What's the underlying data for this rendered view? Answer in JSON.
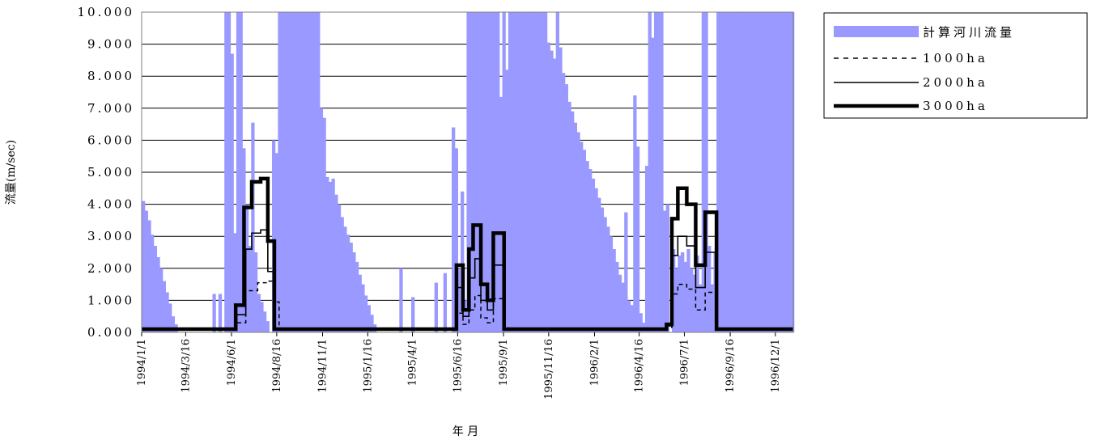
{
  "chart_data": {
    "type": "bar",
    "ylabel": "流量(m/sec)",
    "xlabel": "年 月",
    "ylim": [
      0,
      10
    ],
    "y_ticks": [
      "0.000",
      "1.000",
      "2.000",
      "3.000",
      "4.000",
      "5.000",
      "6.000",
      "7.000",
      "8.000",
      "9.000",
      "10.000"
    ],
    "x_ticks": [
      "1994/1/1",
      "1994/3/16",
      "1994/6/1",
      "1994/8/16",
      "1994/11/1",
      "1995/1/16",
      "1995/4/1",
      "1995/6/16",
      "1995/9/1",
      "1995/11/16",
      "1996/2/1",
      "1996/4/16",
      "1996/7/1",
      "1996/9/16",
      "1996/12/1"
    ],
    "x_range": [
      "1994/1/1",
      "1996/12/31"
    ],
    "grid": true,
    "legend_position": "top-right",
    "series": [
      {
        "name": "計算河川流量",
        "type": "bar",
        "color": "#9999ff",
        "points": [
          [
            "1994-01-01",
            4.1
          ],
          [
            "1994-01-06",
            3.8
          ],
          [
            "1994-01-11",
            3.5
          ],
          [
            "1994-01-16",
            3.05
          ],
          [
            "1994-01-21",
            2.7
          ],
          [
            "1994-01-26",
            2.35
          ],
          [
            "1994-01-31",
            2.0
          ],
          [
            "1994-02-05",
            1.6
          ],
          [
            "1994-02-10",
            1.25
          ],
          [
            "1994-02-15",
            0.9
          ],
          [
            "1994-02-20",
            0.5
          ],
          [
            "1994-02-25",
            0.25
          ],
          [
            "1994-04-30",
            1.2
          ],
          [
            "1994-05-10",
            1.2
          ],
          [
            "1994-05-20",
            10
          ],
          [
            "1994-05-25",
            10
          ],
          [
            "1994-05-30",
            8.7
          ],
          [
            "1994-06-04",
            3.1
          ],
          [
            "1994-06-09",
            10
          ],
          [
            "1994-06-14",
            10
          ],
          [
            "1994-06-19",
            5.75
          ],
          [
            "1994-06-24",
            4.0
          ],
          [
            "1994-06-29",
            2.7
          ],
          [
            "1994-07-04",
            6.55
          ],
          [
            "1994-07-09",
            2.5
          ],
          [
            "1994-07-14",
            1.2
          ],
          [
            "1994-07-19",
            0.95
          ],
          [
            "1994-07-24",
            0.65
          ],
          [
            "1994-07-29",
            0.35
          ],
          [
            "1994-08-08",
            6.0
          ],
          [
            "1994-08-13",
            5.6
          ],
          [
            "1994-08-18",
            10
          ],
          [
            "1994-08-23",
            10
          ],
          [
            "1994-08-28",
            10
          ],
          [
            "1994-09-02",
            10
          ],
          [
            "1994-09-07",
            10
          ],
          [
            "1994-09-12",
            10
          ],
          [
            "1994-09-17",
            10
          ],
          [
            "1994-09-22",
            10
          ],
          [
            "1994-09-27",
            10
          ],
          [
            "1994-10-02",
            10
          ],
          [
            "1994-10-07",
            10
          ],
          [
            "1994-10-12",
            10
          ],
          [
            "1994-10-17",
            10
          ],
          [
            "1994-10-22",
            10
          ],
          [
            "1994-10-27",
            7.0
          ],
          [
            "1994-11-01",
            6.7
          ],
          [
            "1994-11-06",
            4.85
          ],
          [
            "1994-11-11",
            4.7
          ],
          [
            "1994-11-16",
            4.8
          ],
          [
            "1994-11-21",
            4.3
          ],
          [
            "1994-11-26",
            4.0
          ],
          [
            "1994-12-01",
            3.6
          ],
          [
            "1994-12-06",
            3.3
          ],
          [
            "1994-12-11",
            3.05
          ],
          [
            "1994-12-16",
            2.8
          ],
          [
            "1994-12-21",
            2.5
          ],
          [
            "1994-12-26",
            2.2
          ],
          [
            "1994-12-31",
            1.8
          ],
          [
            "1995-01-05",
            1.5
          ],
          [
            "1995-01-10",
            1.15
          ],
          [
            "1995-01-15",
            0.85
          ],
          [
            "1995-01-20",
            0.55
          ],
          [
            "1995-01-25",
            0.25
          ],
          [
            "1995-03-10",
            2.0
          ],
          [
            "1995-03-30",
            1.1
          ],
          [
            "1995-05-08",
            1.55
          ],
          [
            "1995-05-23",
            1.85
          ],
          [
            "1995-06-06",
            6.4
          ],
          [
            "1995-06-11",
            5.75
          ],
          [
            "1995-06-16",
            2.0
          ],
          [
            "1995-06-21",
            4.4
          ],
          [
            "1995-06-26",
            1.0
          ],
          [
            "1995-07-01",
            10
          ],
          [
            "1995-07-06",
            10
          ],
          [
            "1995-07-11",
            10
          ],
          [
            "1995-07-16",
            10
          ],
          [
            "1995-07-21",
            10
          ],
          [
            "1995-07-26",
            10
          ],
          [
            "1995-07-31",
            10
          ],
          [
            "1995-08-05",
            10
          ],
          [
            "1995-08-10",
            10
          ],
          [
            "1995-08-15",
            10
          ],
          [
            "1995-08-20",
            10
          ],
          [
            "1995-08-25",
            7.35
          ],
          [
            "1995-08-30",
            10
          ],
          [
            "1995-09-04",
            8.2
          ],
          [
            "1995-09-09",
            10
          ],
          [
            "1995-09-14",
            10
          ],
          [
            "1995-09-19",
            10
          ],
          [
            "1995-09-24",
            10
          ],
          [
            "1995-09-29",
            10
          ],
          [
            "1995-10-04",
            10
          ],
          [
            "1995-10-09",
            10
          ],
          [
            "1995-10-14",
            10
          ],
          [
            "1995-10-19",
            10
          ],
          [
            "1995-10-24",
            10
          ],
          [
            "1995-10-29",
            10
          ],
          [
            "1995-11-03",
            10
          ],
          [
            "1995-11-08",
            10
          ],
          [
            "1995-11-13",
            9.05
          ],
          [
            "1995-11-18",
            8.8
          ],
          [
            "1995-11-23",
            8.55
          ],
          [
            "1995-11-28",
            10
          ],
          [
            "1995-12-03",
            8.9
          ],
          [
            "1995-12-08",
            8.1
          ],
          [
            "1995-12-13",
            7.75
          ],
          [
            "1995-12-18",
            7.2
          ],
          [
            "1995-12-23",
            6.9
          ],
          [
            "1995-12-28",
            6.55
          ],
          [
            "1996-01-02",
            6.25
          ],
          [
            "1996-01-07",
            5.95
          ],
          [
            "1996-01-12",
            5.7
          ],
          [
            "1996-01-17",
            5.35
          ],
          [
            "1996-01-22",
            5.1
          ],
          [
            "1996-01-27",
            4.8
          ],
          [
            "1996-02-01",
            4.5
          ],
          [
            "1996-02-06",
            4.2
          ],
          [
            "1996-02-11",
            3.9
          ],
          [
            "1996-02-16",
            3.6
          ],
          [
            "1996-02-21",
            3.3
          ],
          [
            "1996-02-26",
            3.0
          ],
          [
            "1996-03-02",
            2.6
          ],
          [
            "1996-03-07",
            2.2
          ],
          [
            "1996-03-12",
            1.8
          ],
          [
            "1996-03-17",
            1.55
          ],
          [
            "1996-03-22",
            3.75
          ],
          [
            "1996-03-27",
            1.0
          ],
          [
            "1996-04-01",
            0.85
          ],
          [
            "1996-04-06",
            7.4
          ],
          [
            "1996-04-11",
            5.8
          ],
          [
            "1996-04-16",
            0.6
          ],
          [
            "1996-04-21",
            0.3
          ],
          [
            "1996-04-26",
            5.2
          ],
          [
            "1996-05-01",
            10
          ],
          [
            "1996-05-06",
            9.2
          ],
          [
            "1996-05-11",
            10
          ],
          [
            "1996-05-16",
            10
          ],
          [
            "1996-05-21",
            10
          ],
          [
            "1996-05-26",
            3.8
          ],
          [
            "1996-05-31",
            4.0
          ],
          [
            "1996-06-10",
            2.6
          ],
          [
            "1996-06-15",
            2.0
          ],
          [
            "1996-06-20",
            2.4
          ],
          [
            "1996-06-25",
            2.5
          ],
          [
            "1996-06-30",
            2.2
          ],
          [
            "1996-07-05",
            2.6
          ],
          [
            "1996-07-10",
            2.0
          ],
          [
            "1996-07-15",
            1.8
          ],
          [
            "1996-07-20",
            2.4
          ],
          [
            "1996-07-25",
            1.5
          ],
          [
            "1996-07-30",
            10
          ],
          [
            "1996-08-04",
            10
          ],
          [
            "1996-08-09",
            2.7
          ],
          [
            "1996-08-14",
            1.5
          ],
          [
            "1996-08-19",
            2.5
          ],
          [
            "1996-08-24",
            10
          ],
          [
            "1996-08-29",
            10
          ],
          [
            "1996-09-03",
            10
          ],
          [
            "1996-09-08",
            10
          ],
          [
            "1996-09-13",
            10
          ],
          [
            "1996-09-18",
            10
          ],
          [
            "1996-09-23",
            10
          ],
          [
            "1996-09-28",
            10
          ],
          [
            "1996-10-03",
            10
          ],
          [
            "1996-10-08",
            10
          ],
          [
            "1996-10-13",
            10
          ],
          [
            "1996-10-18",
            10
          ],
          [
            "1996-10-23",
            10
          ],
          [
            "1996-10-28",
            10
          ],
          [
            "1996-11-02",
            10
          ],
          [
            "1996-11-07",
            10
          ],
          [
            "1996-11-12",
            10
          ],
          [
            "1996-11-17",
            10
          ],
          [
            "1996-11-22",
            10
          ],
          [
            "1996-11-27",
            10
          ],
          [
            "1996-12-02",
            10
          ],
          [
            "1996-12-07",
            10
          ],
          [
            "1996-12-12",
            10
          ],
          [
            "1996-12-17",
            10
          ],
          [
            "1996-12-22",
            10
          ],
          [
            "1996-12-27",
            10
          ]
        ]
      },
      {
        "name": "1000ha",
        "type": "step",
        "color": "#000000",
        "dash": "dashed",
        "steps": [
          [
            "1994-01-01",
            0.1
          ],
          [
            "1994-06-01",
            0.1
          ],
          [
            "1994-06-10",
            0.3
          ],
          [
            "1994-06-25",
            1.3
          ],
          [
            "1994-07-15",
            1.55
          ],
          [
            "1994-08-01",
            1.6
          ],
          [
            "1994-08-10",
            0.95
          ],
          [
            "1994-08-20",
            0.1
          ],
          [
            "1995-06-11",
            0.1
          ],
          [
            "1995-06-14",
            0.6
          ],
          [
            "1995-06-25",
            0.25
          ],
          [
            "1995-07-05",
            0.7
          ],
          [
            "1995-07-15",
            1.15
          ],
          [
            "1995-07-25",
            0.45
          ],
          [
            "1995-08-05",
            0.3
          ],
          [
            "1995-08-15",
            1.05
          ],
          [
            "1995-08-25",
            1.05
          ],
          [
            "1995-09-02",
            0.1
          ],
          [
            "1996-05-20",
            0.1
          ],
          [
            "1996-06-01",
            0.15
          ],
          [
            "1996-06-10",
            1.2
          ],
          [
            "1996-06-20",
            1.5
          ],
          [
            "1996-07-05",
            1.35
          ],
          [
            "1996-07-20",
            0.7
          ],
          [
            "1996-08-05",
            1.25
          ],
          [
            "1996-08-19",
            1.25
          ],
          [
            "1996-08-24",
            0.1
          ],
          [
            "1996-12-31",
            0.1
          ]
        ]
      },
      {
        "name": "2000ha",
        "type": "step",
        "color": "#000000",
        "dash": "solid",
        "steps": [
          [
            "1994-01-01",
            0.1
          ],
          [
            "1994-06-01",
            0.1
          ],
          [
            "1994-06-10",
            0.55
          ],
          [
            "1994-06-25",
            2.6
          ],
          [
            "1994-07-05",
            3.1
          ],
          [
            "1994-07-20",
            3.2
          ],
          [
            "1994-08-01",
            1.9
          ],
          [
            "1994-08-10",
            0.1
          ],
          [
            "1995-06-11",
            0.1
          ],
          [
            "1995-06-14",
            1.4
          ],
          [
            "1995-06-25",
            0.5
          ],
          [
            "1995-07-05",
            1.7
          ],
          [
            "1995-07-15",
            2.3
          ],
          [
            "1995-07-25",
            1.0
          ],
          [
            "1995-08-05",
            0.7
          ],
          [
            "1995-08-15",
            2.1
          ],
          [
            "1995-08-25",
            2.1
          ],
          [
            "1995-09-02",
            0.1
          ],
          [
            "1996-05-20",
            0.1
          ],
          [
            "1996-06-01",
            0.2
          ],
          [
            "1996-06-10",
            2.4
          ],
          [
            "1996-06-20",
            3.0
          ],
          [
            "1996-07-05",
            2.7
          ],
          [
            "1996-07-20",
            1.4
          ],
          [
            "1996-08-05",
            2.5
          ],
          [
            "1996-08-19",
            2.5
          ],
          [
            "1996-08-24",
            0.1
          ],
          [
            "1996-12-31",
            0.1
          ]
        ]
      },
      {
        "name": "3000ha",
        "type": "step",
        "color": "#000000",
        "dash": "bold",
        "steps": [
          [
            "1994-01-01",
            0.1
          ],
          [
            "1994-06-01",
            0.1
          ],
          [
            "1994-06-08",
            0.85
          ],
          [
            "1994-06-22",
            3.9
          ],
          [
            "1994-07-05",
            4.7
          ],
          [
            "1994-07-20",
            4.8
          ],
          [
            "1994-08-01",
            2.85
          ],
          [
            "1994-08-12",
            0.1
          ],
          [
            "1995-06-11",
            0.1
          ],
          [
            "1995-06-14",
            2.1
          ],
          [
            "1995-06-25",
            0.7
          ],
          [
            "1995-07-05",
            2.6
          ],
          [
            "1995-07-12",
            3.35
          ],
          [
            "1995-07-25",
            1.5
          ],
          [
            "1995-08-05",
            1.0
          ],
          [
            "1995-08-15",
            3.1
          ],
          [
            "1995-08-25",
            3.1
          ],
          [
            "1995-09-02",
            0.1
          ],
          [
            "1996-05-20",
            0.1
          ],
          [
            "1996-06-01",
            0.25
          ],
          [
            "1996-06-10",
            3.55
          ],
          [
            "1996-06-20",
            4.5
          ],
          [
            "1996-07-05",
            4.0
          ],
          [
            "1996-07-20",
            2.1
          ],
          [
            "1996-08-05",
            3.75
          ],
          [
            "1996-08-19",
            3.75
          ],
          [
            "1996-08-24",
            0.1
          ],
          [
            "1996-12-31",
            0.1
          ]
        ]
      }
    ]
  }
}
